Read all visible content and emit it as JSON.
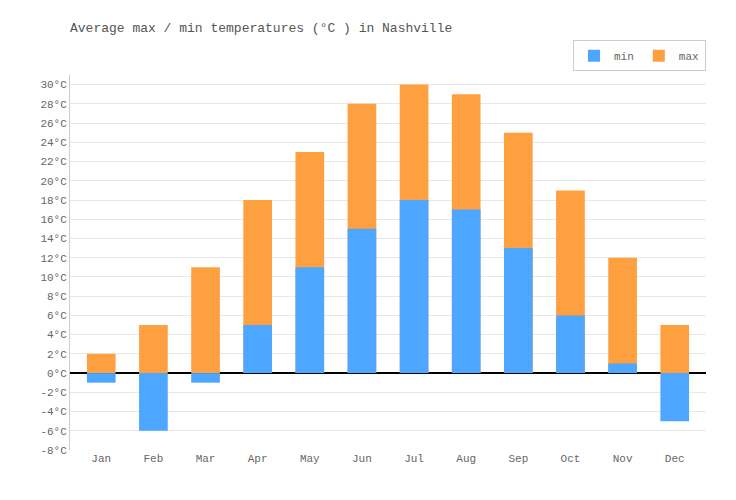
{
  "chart_data": {
    "type": "bar",
    "title": "Average max / min temperatures (°C ) in Nashville",
    "categories": [
      "Jan",
      "Feb",
      "Mar",
      "Apr",
      "May",
      "Jun",
      "Jul",
      "Aug",
      "Sep",
      "Oct",
      "Nov",
      "Dec"
    ],
    "series": [
      {
        "name": "min",
        "color": "#4da6ff",
        "values": [
          -1,
          -6,
          -1,
          5,
          11,
          15,
          18,
          17,
          13,
          6,
          1,
          -5
        ]
      },
      {
        "name": "max",
        "color": "#ffa040",
        "values": [
          2,
          5,
          11,
          18,
          23,
          28,
          30,
          29,
          25,
          19,
          12,
          5
        ]
      }
    ],
    "ylim": [
      -8,
      31
    ],
    "yticks": [
      {
        "value": -8,
        "label": "-8°C"
      },
      {
        "value": -6,
        "label": "-6°C"
      },
      {
        "value": -4,
        "label": "-4°C"
      },
      {
        "value": -2,
        "label": "-2°C"
      },
      {
        "value": 0,
        "label": "0°C"
      },
      {
        "value": 2,
        "label": "2°C"
      },
      {
        "value": 4,
        "label": "4°C"
      },
      {
        "value": 6,
        "label": "6°C"
      },
      {
        "value": 8,
        "label": "8°C"
      },
      {
        "value": 10,
        "label": "10°C"
      },
      {
        "value": 12,
        "label": "12°C"
      },
      {
        "value": 14,
        "label": "14°C"
      },
      {
        "value": 16,
        "label": "16°C"
      },
      {
        "value": 18,
        "label": "18°C"
      },
      {
        "value": 20,
        "label": "20°C"
      },
      {
        "value": 22,
        "label": "22°C"
      },
      {
        "value": 24,
        "label": "24°C"
      },
      {
        "value": 26,
        "label": "26°C"
      },
      {
        "value": 28,
        "label": "28°C"
      },
      {
        "value": 30,
        "label": "30°C"
      }
    ],
    "grid": true,
    "legend": "upper right"
  }
}
